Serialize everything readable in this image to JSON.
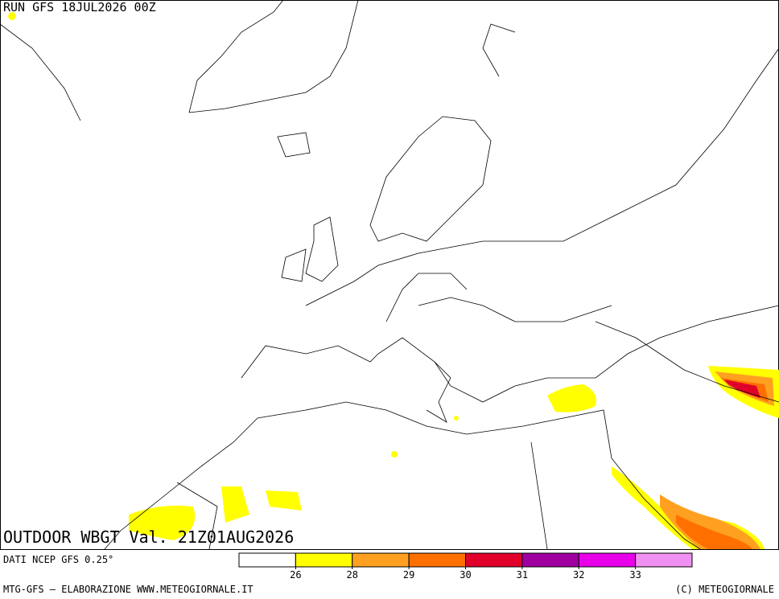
{
  "header": {
    "run": "RUN GFS 18JUL2026 00Z"
  },
  "map": {
    "title": "OUTDOOR WBGT Val. 21Z01AUG2026"
  },
  "legend": {
    "source": "DATI NCEP GFS 0.25°",
    "colors": [
      "#ffffff",
      "#ffff00",
      "#ffa020",
      "#ff7000",
      "#e0002a",
      "#a000a0",
      "#e800e8",
      "#f090f0"
    ],
    "ticks": [
      26,
      28,
      29,
      30,
      31,
      32,
      33
    ]
  },
  "footer": {
    "left": "MTG-GFS — ELABORAZIONE WWW.METEOGIORNALE.IT",
    "right": "(C) METEOGIORNALE"
  }
}
